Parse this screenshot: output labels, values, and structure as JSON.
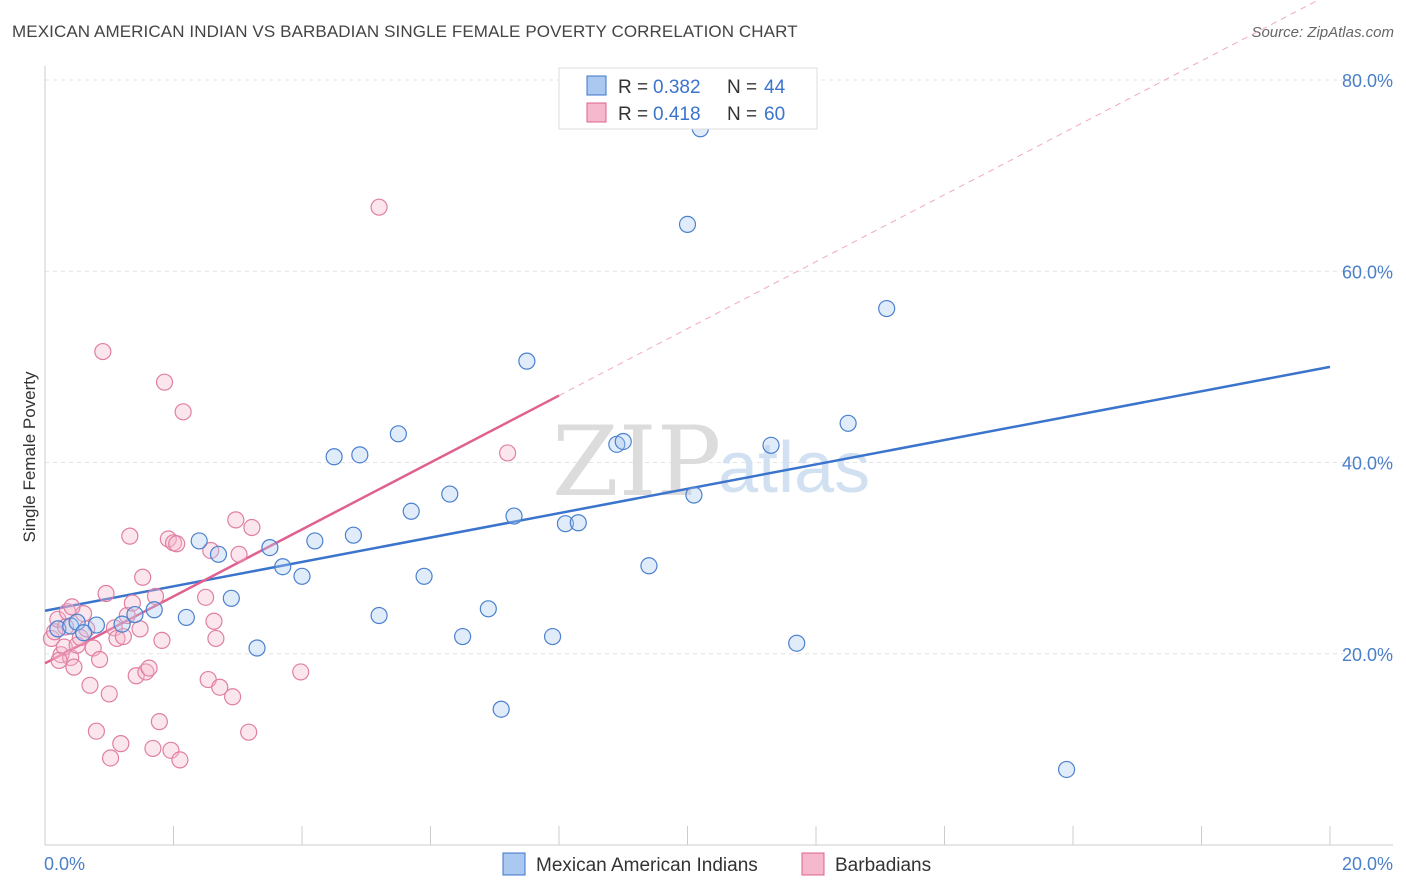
{
  "title": "MEXICAN AMERICAN INDIAN VS BARBADIAN SINGLE FEMALE POVERTY CORRELATION CHART",
  "source": "Source: ZipAtlas.com",
  "watermark": {
    "zip": "ZIP",
    "atlas": "atlas"
  },
  "legend": {
    "r_label": "R =",
    "n_label": "N =",
    "rows": [
      {
        "r": "0.382",
        "n": "44"
      },
      {
        "r": "0.418",
        "n": "60"
      }
    ]
  },
  "chart_data": {
    "type": "scatter",
    "title": "MEXICAN AMERICAN INDIAN VS BARBADIAN SINGLE FEMALE POVERTY CORRELATION CHART",
    "xlabel": "",
    "ylabel": "Single Female Poverty",
    "xlim": [
      0,
      20
    ],
    "ylim": [
      0,
      82
    ],
    "x_tick_labels": [
      "0.0%",
      "20.0%"
    ],
    "y_ticks": [
      20,
      40,
      60,
      80
    ],
    "y_tick_labels": [
      "20.0%",
      "40.0%",
      "60.0%",
      "80.0%"
    ],
    "grid": true,
    "legend_position": "top-center",
    "colors": {
      "blue": "#3b74cc",
      "blue_fill": "#aac8f0",
      "pink": "#e0608f",
      "pink_fill": "#f5b8cc"
    },
    "series": [
      {
        "name": "Mexican American Indians",
        "color": "#3b74cc",
        "trend": {
          "x0": 0,
          "y0": 24.5,
          "x1": 20,
          "y1": 50
        },
        "points": [
          [
            0.2,
            22.6
          ],
          [
            0.4,
            22.9
          ],
          [
            0.5,
            23.3
          ],
          [
            0.8,
            23.0
          ],
          [
            1.2,
            23.1
          ],
          [
            1.4,
            24.1
          ],
          [
            1.7,
            24.6
          ],
          [
            2.2,
            23.8
          ],
          [
            2.4,
            31.8
          ],
          [
            2.7,
            30.4
          ],
          [
            2.9,
            25.8
          ],
          [
            3.3,
            20.6
          ],
          [
            3.5,
            31.1
          ],
          [
            3.7,
            29.1
          ],
          [
            4.0,
            28.1
          ],
          [
            4.2,
            31.8
          ],
          [
            4.5,
            40.6
          ],
          [
            4.8,
            32.4
          ],
          [
            4.9,
            40.8
          ],
          [
            5.2,
            24.0
          ],
          [
            5.5,
            43.0
          ],
          [
            5.7,
            34.9
          ],
          [
            5.9,
            28.1
          ],
          [
            6.3,
            36.7
          ],
          [
            6.5,
            21.8
          ],
          [
            6.9,
            24.7
          ],
          [
            7.1,
            14.2
          ],
          [
            7.3,
            34.4
          ],
          [
            7.5,
            50.6
          ],
          [
            7.9,
            21.8
          ],
          [
            8.1,
            33.6
          ],
          [
            8.3,
            33.7
          ],
          [
            8.9,
            41.9
          ],
          [
            9.0,
            42.2
          ],
          [
            9.4,
            29.2
          ],
          [
            10.0,
            64.9
          ],
          [
            10.2,
            74.9
          ],
          [
            10.1,
            36.6
          ],
          [
            11.3,
            41.8
          ],
          [
            11.7,
            21.1
          ],
          [
            12.5,
            44.1
          ],
          [
            13.1,
            56.1
          ],
          [
            15.9,
            7.9
          ],
          [
            0.6,
            22.2
          ]
        ]
      },
      {
        "name": "Barbadians",
        "color": "#e0608f",
        "trend": {
          "x0": 0,
          "y0": 19,
          "x1": 8,
          "y1": 47
        },
        "trend_dashed": {
          "x0": 8,
          "y0": 47,
          "x1": 20,
          "y1": 89
        },
        "points": [
          [
            0.1,
            21.6
          ],
          [
            0.15,
            22.3
          ],
          [
            0.2,
            23.6
          ],
          [
            0.25,
            19.9
          ],
          [
            0.3,
            20.7
          ],
          [
            0.35,
            24.4
          ],
          [
            0.4,
            19.6
          ],
          [
            0.45,
            18.6
          ],
          [
            0.5,
            20.9
          ],
          [
            0.55,
            21.7
          ],
          [
            0.6,
            24.2
          ],
          [
            0.65,
            22.6
          ],
          [
            0.7,
            16.7
          ],
          [
            0.75,
            20.6
          ],
          [
            0.8,
            11.9
          ],
          [
            0.85,
            19.4
          ],
          [
            0.9,
            51.6
          ],
          [
            0.95,
            26.3
          ],
          [
            1.0,
            15.8
          ],
          [
            1.02,
            9.1
          ],
          [
            1.08,
            22.7
          ],
          [
            1.12,
            21.6
          ],
          [
            1.18,
            10.6
          ],
          [
            1.22,
            21.8
          ],
          [
            1.28,
            24.0
          ],
          [
            1.32,
            32.3
          ],
          [
            1.36,
            25.3
          ],
          [
            1.42,
            17.7
          ],
          [
            1.48,
            22.6
          ],
          [
            1.52,
            28.0
          ],
          [
            1.57,
            18.1
          ],
          [
            1.62,
            18.5
          ],
          [
            1.68,
            10.1
          ],
          [
            1.72,
            26.0
          ],
          [
            1.78,
            12.9
          ],
          [
            1.82,
            21.4
          ],
          [
            1.86,
            48.4
          ],
          [
            1.92,
            32.0
          ],
          [
            1.96,
            9.9
          ],
          [
            2.0,
            31.6
          ],
          [
            2.05,
            31.5
          ],
          [
            2.1,
            8.9
          ],
          [
            2.15,
            45.3
          ],
          [
            2.5,
            25.9
          ],
          [
            2.54,
            17.3
          ],
          [
            2.58,
            30.8
          ],
          [
            2.63,
            23.4
          ],
          [
            2.66,
            21.6
          ],
          [
            2.72,
            16.5
          ],
          [
            2.92,
            15.5
          ],
          [
            2.97,
            34.0
          ],
          [
            3.02,
            30.4
          ],
          [
            3.17,
            11.8
          ],
          [
            3.22,
            33.2
          ],
          [
            3.98,
            18.1
          ],
          [
            5.2,
            66.7
          ],
          [
            7.2,
            41.0
          ],
          [
            0.22,
            19.3
          ],
          [
            0.32,
            22.8
          ],
          [
            0.42,
            24.9
          ]
        ]
      }
    ]
  }
}
